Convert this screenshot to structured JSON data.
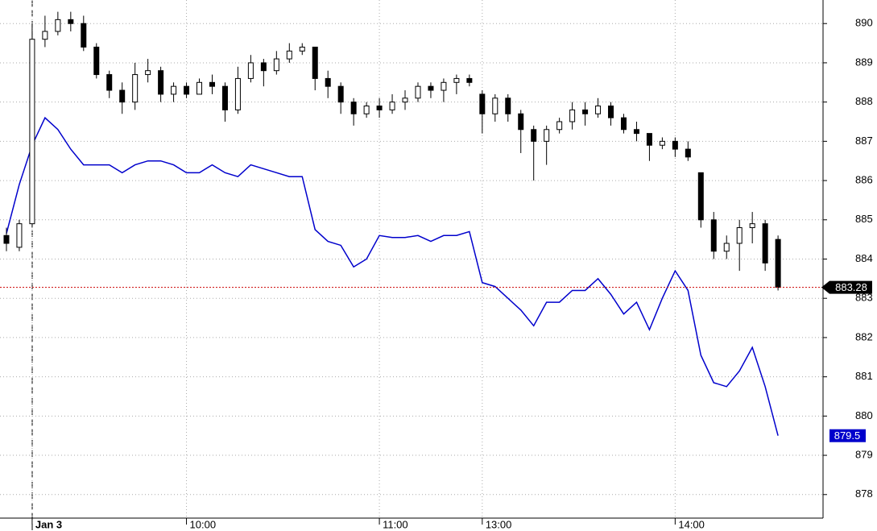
{
  "chart_data": {
    "type": "candlestick",
    "categories": [
      null,
      null,
      "Jan 3",
      null,
      null,
      null,
      null,
      null,
      null,
      null,
      null,
      null,
      null,
      null,
      "10:00",
      null,
      null,
      null,
      null,
      null,
      null,
      null,
      null,
      null,
      null,
      null,
      null,
      null,
      null,
      "11:00",
      null,
      null,
      null,
      null,
      null,
      null,
      null,
      "13:00",
      null,
      null,
      null,
      null,
      null,
      null,
      null,
      null,
      null,
      null,
      null,
      null,
      null,
      null,
      "14:00",
      null,
      null,
      null,
      null,
      null,
      null,
      null,
      null,
      null,
      null,
      null
    ],
    "candles": {
      "up_color": "#ffffff",
      "down_color": "#000000",
      "open": [
        884.6,
        884.3,
        884.9,
        889.6,
        889.8,
        890.1,
        890.0,
        889.4,
        888.7,
        888.3,
        888.0,
        888.7,
        888.8,
        888.2,
        888.4,
        888.2,
        888.5,
        888.4,
        887.8,
        888.6,
        889.0,
        888.8,
        889.1,
        889.3,
        889.4,
        888.6,
        888.4,
        888.0,
        887.7,
        887.9,
        887.8,
        888.0,
        888.1,
        888.4,
        888.3,
        888.5,
        888.6,
        888.2,
        887.7,
        888.1,
        887.7,
        887.3,
        887.0,
        887.3,
        887.5,
        887.8,
        887.7,
        887.9,
        887.6,
        887.3,
        887.2,
        886.9,
        887.0,
        886.8,
        886.2,
        885.0,
        884.2,
        884.4,
        884.8,
        884.9,
        884.5,
        null,
        null,
        null
      ],
      "high": [
        884.8,
        885.0,
        890.0,
        890.2,
        890.3,
        890.3,
        890.2,
        889.5,
        888.8,
        888.5,
        889.0,
        889.1,
        888.9,
        888.5,
        888.5,
        888.6,
        888.7,
        888.5,
        888.9,
        889.2,
        889.1,
        889.3,
        889.5,
        889.5,
        889.4,
        888.8,
        888.5,
        888.1,
        888.0,
        888.1,
        888.2,
        888.3,
        888.5,
        888.5,
        888.6,
        888.7,
        888.7,
        888.3,
        888.2,
        888.2,
        887.8,
        887.4,
        887.4,
        887.6,
        888.0,
        888.0,
        888.1,
        888.0,
        887.7,
        887.5,
        887.2,
        887.1,
        887.1,
        887.0,
        886.2,
        885.2,
        884.6,
        885.0,
        885.2,
        885.0,
        884.6,
        null,
        null,
        null
      ],
      "low": [
        884.2,
        884.2,
        884.8,
        889.4,
        889.7,
        889.8,
        889.3,
        888.6,
        888.1,
        887.7,
        887.8,
        888.5,
        888.0,
        888.0,
        888.1,
        888.2,
        888.2,
        887.5,
        887.7,
        888.5,
        888.4,
        888.7,
        889.0,
        889.2,
        888.3,
        888.1,
        887.7,
        887.4,
        887.6,
        887.6,
        887.7,
        887.8,
        888.0,
        888.1,
        888.0,
        888.2,
        888.4,
        887.2,
        887.5,
        887.5,
        886.7,
        886.0,
        886.4,
        887.2,
        887.3,
        887.4,
        887.6,
        887.4,
        887.2,
        887.0,
        886.5,
        886.8,
        886.6,
        886.5,
        884.8,
        884.0,
        884.0,
        883.7,
        884.4,
        883.7,
        883.2,
        null,
        null,
        null
      ],
      "close": [
        884.4,
        884.9,
        889.6,
        889.8,
        890.1,
        890.0,
        889.4,
        888.7,
        888.3,
        888.0,
        888.7,
        888.8,
        888.2,
        888.4,
        888.2,
        888.5,
        888.4,
        887.8,
        888.6,
        889.0,
        888.8,
        889.1,
        889.3,
        889.4,
        888.6,
        888.4,
        888.0,
        887.7,
        887.9,
        887.8,
        888.0,
        888.1,
        888.4,
        888.3,
        888.5,
        888.6,
        888.5,
        887.7,
        888.1,
        887.7,
        887.3,
        887.0,
        887.3,
        887.5,
        887.8,
        887.7,
        887.9,
        887.6,
        887.3,
        887.2,
        886.9,
        887.0,
        886.8,
        886.6,
        885.0,
        884.2,
        884.4,
        884.8,
        884.9,
        883.9,
        883.28,
        null,
        null,
        null
      ]
    },
    "line": {
      "color": "#0000cc",
      "values": [
        884.65,
        885.9,
        886.9,
        887.6,
        887.3,
        886.8,
        886.4,
        886.4,
        886.4,
        886.2,
        886.4,
        886.5,
        886.5,
        886.4,
        886.2,
        886.2,
        886.4,
        886.2,
        886.1,
        886.4,
        886.3,
        886.2,
        886.1,
        886.1,
        884.75,
        884.45,
        884.35,
        883.8,
        884.0,
        884.6,
        884.55,
        884.55,
        884.6,
        884.45,
        884.6,
        884.6,
        884.7,
        883.4,
        883.3,
        883.0,
        882.7,
        882.3,
        882.9,
        882.9,
        883.2,
        883.2,
        883.5,
        883.1,
        882.6,
        882.9,
        882.2,
        883.0,
        883.7,
        883.2,
        881.55,
        880.85,
        880.75,
        881.15,
        881.75,
        880.75,
        879.5,
        null,
        null,
        null
      ]
    },
    "last_price": 883.28,
    "last_price_color": "#cc0000",
    "ylim": [
      877.4,
      890.6
    ],
    "yticks": [
      878,
      879,
      880,
      881,
      882,
      883,
      884,
      885,
      886,
      887,
      888,
      889,
      890
    ],
    "grid": true
  }
}
